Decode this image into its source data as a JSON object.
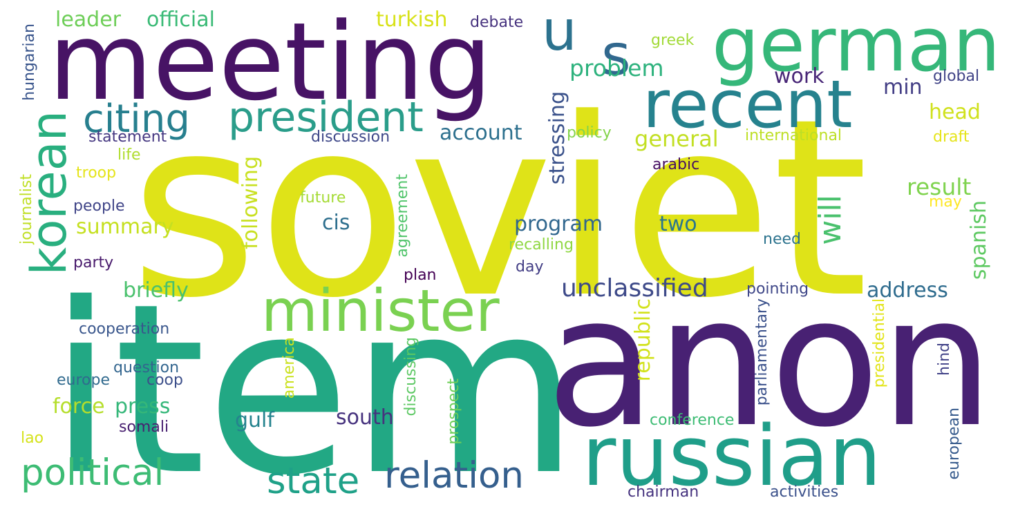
{
  "words": [
    {
      "text": "soviet",
      "color": "#dfe318"
    },
    {
      "text": "item",
      "color": "#22a884"
    },
    {
      "text": "anon",
      "color": "#482173"
    },
    {
      "text": "meeting",
      "color": "#471365"
    },
    {
      "text": "german",
      "color": "#35b779"
    },
    {
      "text": "russian",
      "color": "#1f9e89"
    },
    {
      "text": "recent",
      "color": "#26828e"
    },
    {
      "text": "u",
      "color": "#2c728e"
    },
    {
      "text": "s",
      "color": "#31688e"
    },
    {
      "text": "minister",
      "color": "#7ad151"
    },
    {
      "text": "korean",
      "color": "#29af7f"
    },
    {
      "text": "president",
      "color": "#2a9d8a"
    },
    {
      "text": "citing",
      "color": "#277f8e"
    },
    {
      "text": "political",
      "color": "#3dbc74"
    },
    {
      "text": "relation",
      "color": "#355f8d"
    },
    {
      "text": "state",
      "color": "#1fa188"
    },
    {
      "text": "unclassified",
      "color": "#3e4a89"
    },
    {
      "text": "will",
      "color": "#4ac16d"
    },
    {
      "text": "problem",
      "color": "#2db27d"
    },
    {
      "text": "leader",
      "color": "#6ece58"
    },
    {
      "text": "official",
      "color": "#3aba76"
    },
    {
      "text": "turkish",
      "color": "#d8e219"
    },
    {
      "text": "debate",
      "color": "#46327e"
    },
    {
      "text": "greek",
      "color": "#a2da37"
    },
    {
      "text": "global",
      "color": "#414487"
    },
    {
      "text": "work",
      "color": "#482677"
    },
    {
      "text": "min",
      "color": "#433e85"
    },
    {
      "text": "head",
      "color": "#d0e11c"
    },
    {
      "text": "general",
      "color": "#c2df23"
    },
    {
      "text": "account",
      "color": "#2d708e"
    },
    {
      "text": "stressing",
      "color": "#3b528b"
    },
    {
      "text": "policy",
      "color": "#84d44b"
    },
    {
      "text": "international",
      "color": "#bddf26"
    },
    {
      "text": "draft",
      "color": "#e5e419"
    },
    {
      "text": "statement",
      "color": "#453781"
    },
    {
      "text": "discussion",
      "color": "#3f4889"
    },
    {
      "text": "life",
      "color": "#b0dd2f"
    },
    {
      "text": "troop",
      "color": "#e5e419"
    },
    {
      "text": "arabic",
      "color": "#471063"
    },
    {
      "text": "result",
      "color": "#7fd34e"
    },
    {
      "text": "following",
      "color": "#c8e020"
    },
    {
      "text": "future",
      "color": "#a5db36"
    },
    {
      "text": "summary",
      "color": "#c5e021"
    },
    {
      "text": "cis",
      "color": "#2e6f8e"
    },
    {
      "text": "program",
      "color": "#31678e"
    },
    {
      "text": "two",
      "color": "#2a768e"
    },
    {
      "text": "may",
      "color": "#fde725"
    },
    {
      "text": "spanish",
      "color": "#5ec962"
    },
    {
      "text": "people",
      "color": "#404588"
    },
    {
      "text": "journalist",
      "color": "#c0df25"
    },
    {
      "text": "agreement",
      "color": "#50c46a"
    },
    {
      "text": "recalling",
      "color": "#90d743"
    },
    {
      "text": "need",
      "color": "#2c738e"
    },
    {
      "text": "party",
      "color": "#481a6c"
    },
    {
      "text": "day",
      "color": "#433e85"
    },
    {
      "text": "plan",
      "color": "#440154"
    },
    {
      "text": "briefly",
      "color": "#4ac16d"
    },
    {
      "text": "address",
      "color": "#2f6c8e"
    },
    {
      "text": "pointing",
      "color": "#3f4788"
    },
    {
      "text": "parliamentary",
      "color": "#3b518b"
    },
    {
      "text": "republic",
      "color": "#d2e21b"
    },
    {
      "text": "presidential",
      "color": "#e2e418"
    },
    {
      "text": "cooperation",
      "color": "#39568c"
    },
    {
      "text": "question",
      "color": "#32658e"
    },
    {
      "text": "europe",
      "color": "#306a8e"
    },
    {
      "text": "coop",
      "color": "#3c4f8a"
    },
    {
      "text": "america",
      "color": "#cae11f"
    },
    {
      "text": "discussing",
      "color": "#5cc863"
    },
    {
      "text": "hind",
      "color": "#414287"
    },
    {
      "text": "force",
      "color": "#b5de2b"
    },
    {
      "text": "press",
      "color": "#35b779"
    },
    {
      "text": "gulf",
      "color": "#25838e"
    },
    {
      "text": "south",
      "color": "#46327e"
    },
    {
      "text": "prospect",
      "color": "#6ece58"
    },
    {
      "text": "conference",
      "color": "#3dbc74"
    },
    {
      "text": "somali",
      "color": "#481f70"
    },
    {
      "text": "european",
      "color": "#375b8d"
    },
    {
      "text": "lao",
      "color": "#d5e21a"
    },
    {
      "text": "hungarian",
      "color": "#39558c"
    },
    {
      "text": "chairman",
      "color": "#46337f"
    },
    {
      "text": "activities",
      "color": "#3b518b"
    }
  ]
}
